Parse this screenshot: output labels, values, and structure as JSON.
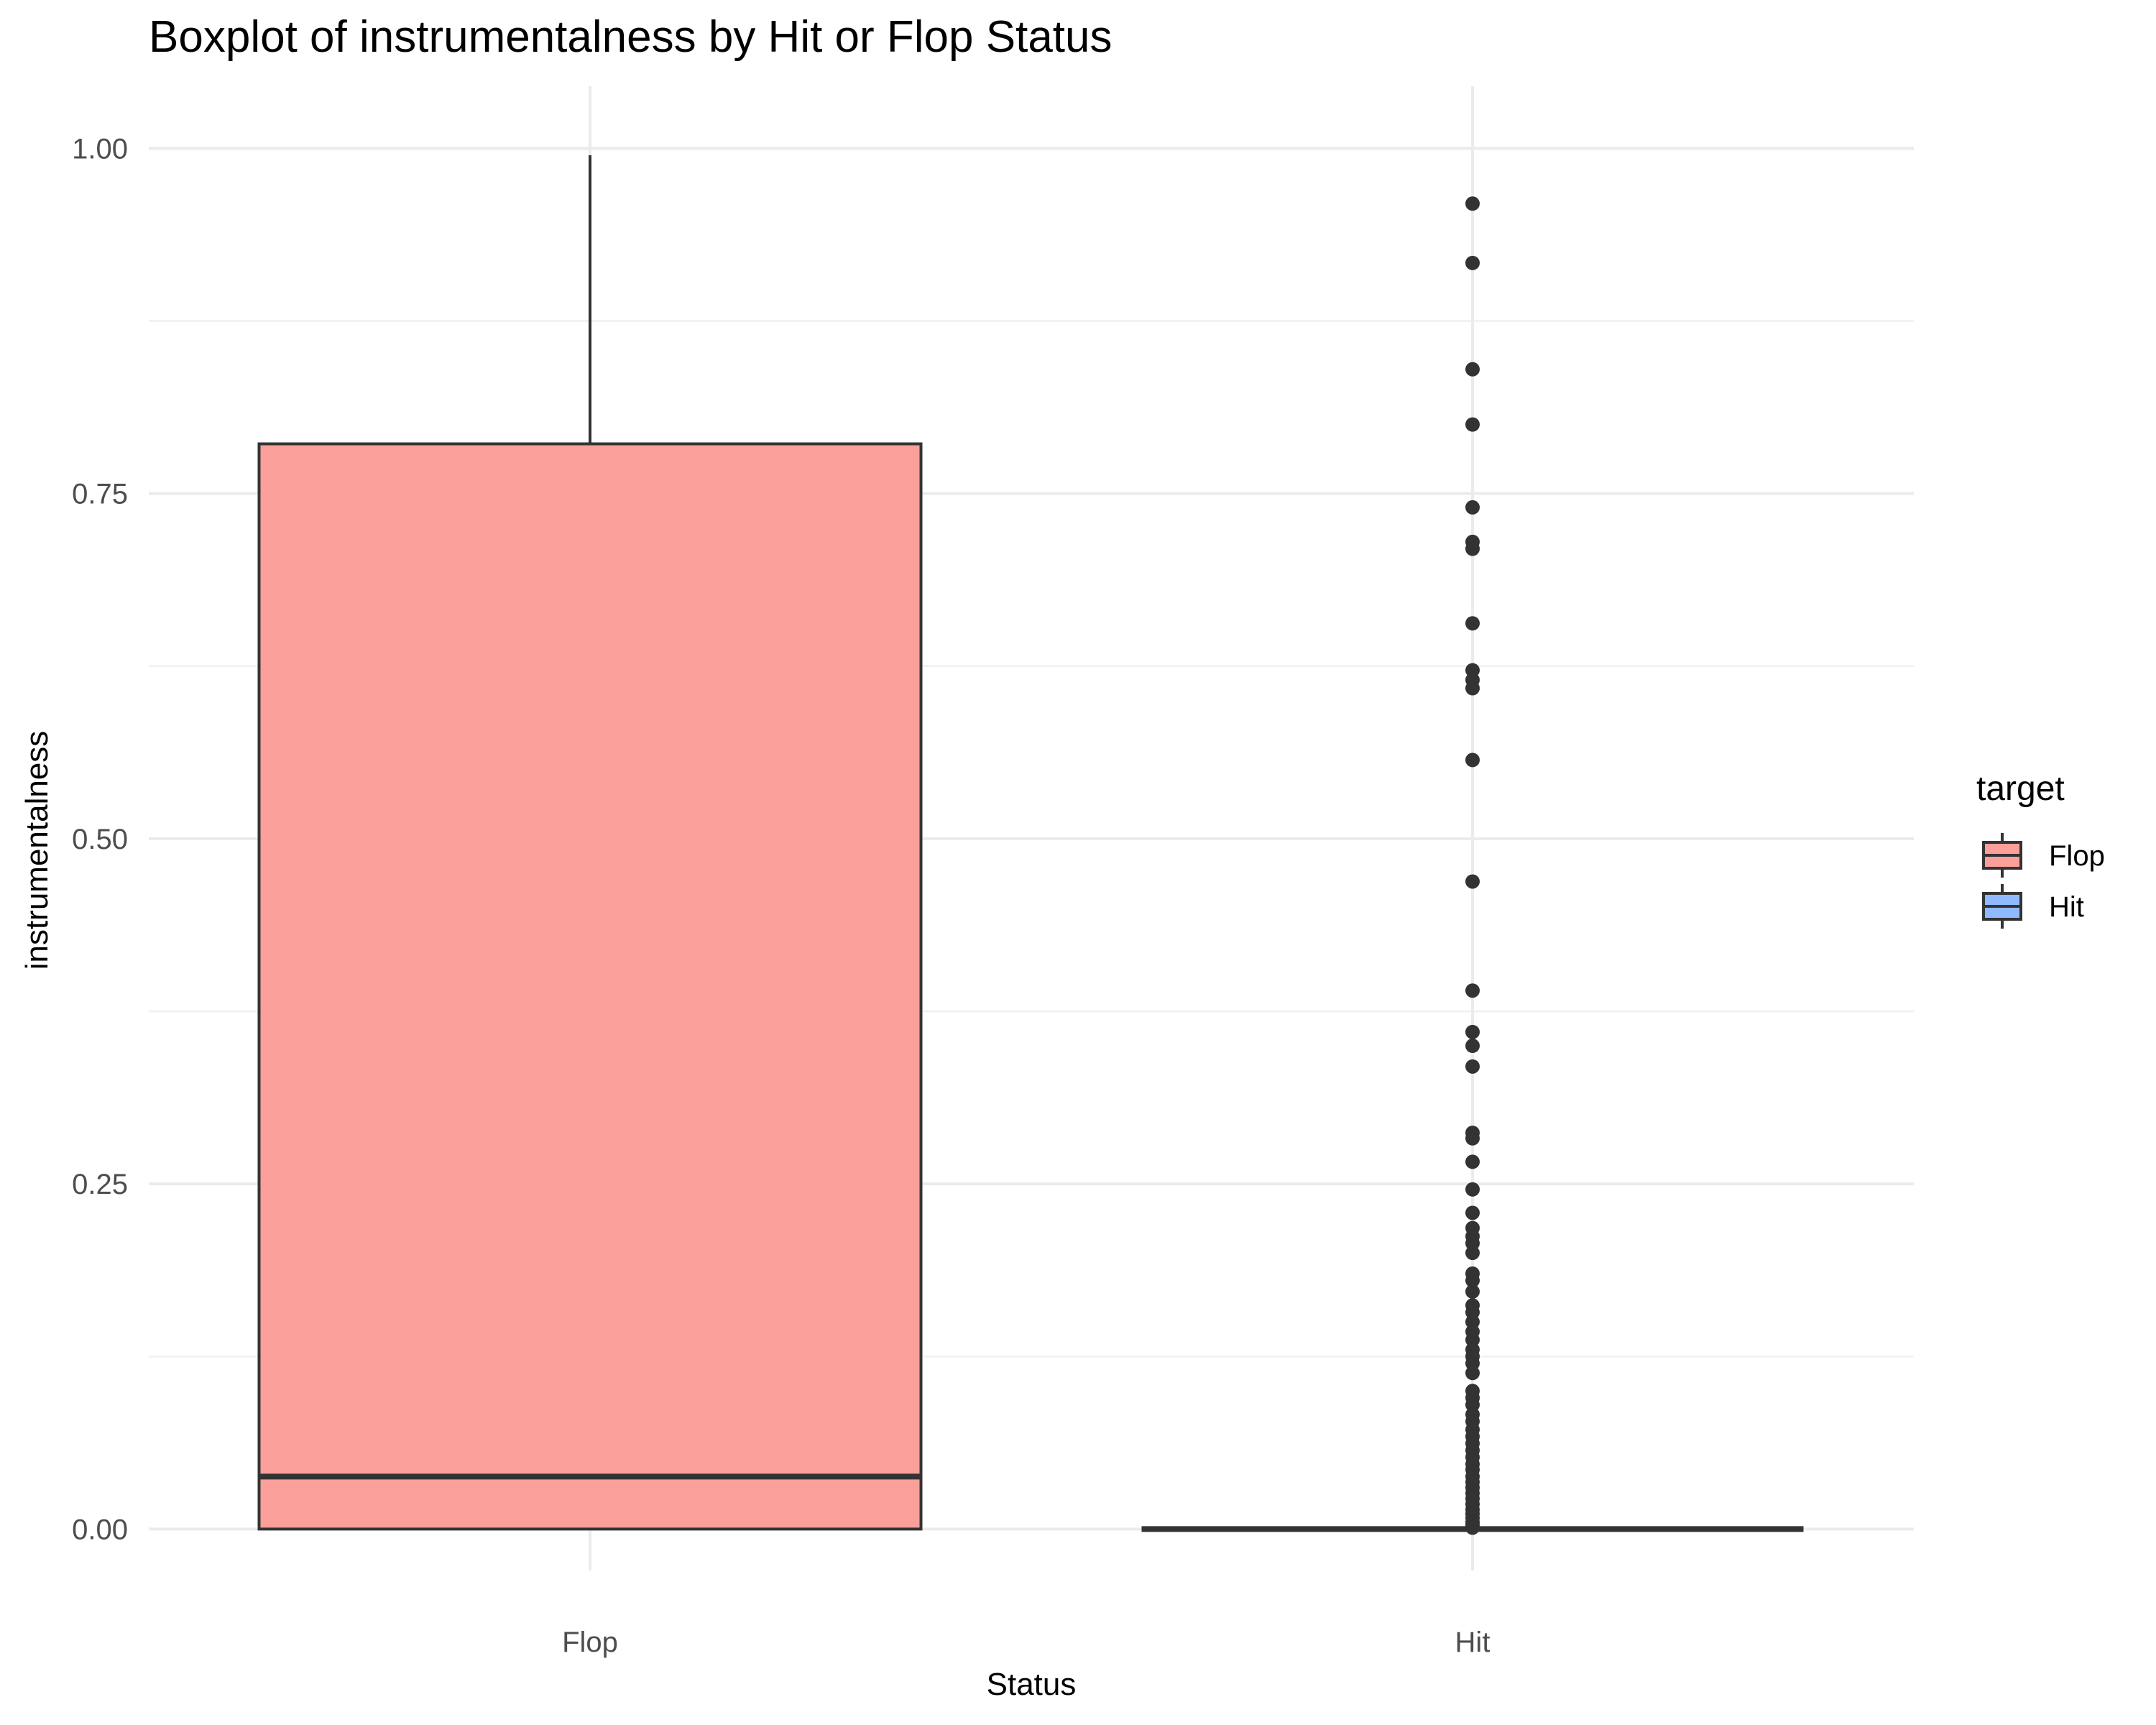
{
  "chart_data": {
    "type": "boxplot",
    "title": "Boxplot of instrumentalness by Hit or Flop Status",
    "xlabel": "Status",
    "ylabel": "instrumentalness",
    "categories": [
      "Flop",
      "Hit"
    ],
    "ylim": [
      -0.03,
      1.045
    ],
    "y_ticks": [
      0.0,
      0.25,
      0.5,
      0.75,
      1.0
    ],
    "y_tick_labels": [
      "0.00",
      "0.25",
      "0.50",
      "0.75",
      "1.00"
    ],
    "grid": true,
    "legend": {
      "title": "target",
      "placement": "right",
      "entries": [
        "Flop",
        "Hit"
      ]
    },
    "colors": {
      "Flop": "#f8766d",
      "Hit": "#619cff"
    },
    "series": [
      {
        "name": "Flop",
        "min": 0.0,
        "q1": 0.0,
        "median": 0.038,
        "q3": 0.786,
        "max": 0.995,
        "outliers": []
      },
      {
        "name": "Hit",
        "min": 0.0,
        "q1": 0.0,
        "median": 0.0,
        "q3": 0.0,
        "max": 0.0,
        "outliers": [
          0.96,
          0.917,
          0.84,
          0.8,
          0.74,
          0.715,
          0.71,
          0.656,
          0.622,
          0.615,
          0.609,
          0.557,
          0.469,
          0.39,
          0.36,
          0.35,
          0.335,
          0.287,
          0.283,
          0.266,
          0.246,
          0.229,
          0.218,
          0.212,
          0.207,
          0.2,
          0.185,
          0.18,
          0.172,
          0.162,
          0.157,
          0.15,
          0.143,
          0.137,
          0.13,
          0.125,
          0.12,
          0.113,
          0.1,
          0.095,
          0.09,
          0.083,
          0.078,
          0.072,
          0.067,
          0.062,
          0.057,
          0.052,
          0.047,
          0.043,
          0.038,
          0.034,
          0.03,
          0.026,
          0.022,
          0.018,
          0.014,
          0.011,
          0.008,
          0.005,
          0.003,
          0.001
        ]
      }
    ]
  }
}
